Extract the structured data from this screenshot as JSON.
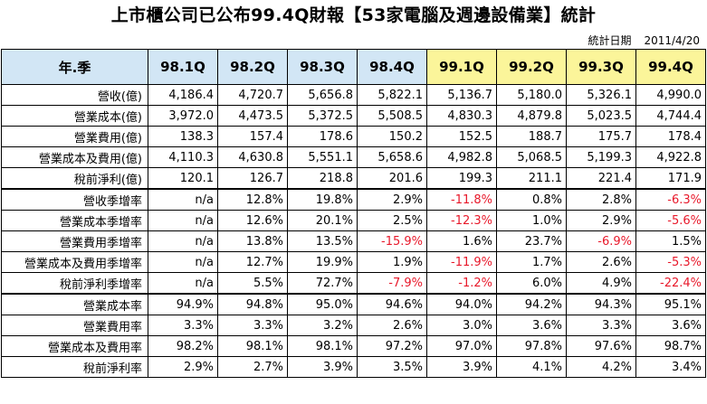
{
  "title": "上市櫃公司已公布99.4Q財報【53家電腦及週邊設備業】統計",
  "stat_date": {
    "label": "統計日期",
    "value": "2011/4/20"
  },
  "header": {
    "row_label": "年.季",
    "quarters": [
      "98.1Q",
      "98.2Q",
      "98.3Q",
      "98.4Q",
      "99.1Q",
      "99.2Q",
      "99.3Q",
      "99.4Q"
    ]
  },
  "colors": {
    "header_2009": "#d2e6f5",
    "header_2010": "#fbf59a",
    "negative": "#e8182a"
  },
  "rows": [
    {
      "label": "營收(億)",
      "values": [
        "4,186.4",
        "4,720.7",
        "5,656.8",
        "5,822.1",
        "5,136.7",
        "5,180.0",
        "5,326.1",
        "4,990.0"
      ]
    },
    {
      "label": "營業成本(億)",
      "values": [
        "3,972.0",
        "4,473.5",
        "5,372.5",
        "5,508.5",
        "4,830.3",
        "4,879.8",
        "5,023.5",
        "4,744.4"
      ]
    },
    {
      "label": "營業費用(億)",
      "values": [
        "138.3",
        "157.4",
        "178.6",
        "150.2",
        "152.5",
        "188.7",
        "175.7",
        "178.4"
      ]
    },
    {
      "label": "營業成本及費用(億)",
      "values": [
        "4,110.3",
        "4,630.8",
        "5,551.1",
        "5,658.6",
        "4,982.8",
        "5,068.5",
        "5,199.3",
        "4,922.8"
      ]
    },
    {
      "label": "稅前淨利(億)",
      "values": [
        "120.1",
        "126.7",
        "218.8",
        "201.6",
        "199.3",
        "211.1",
        "221.4",
        "171.9"
      ]
    },
    {
      "label": "營收季增率",
      "values": [
        "n/a",
        "12.8%",
        "19.8%",
        "2.9%",
        "-11.8%",
        "0.8%",
        "2.8%",
        "-6.3%"
      ]
    },
    {
      "label": "營業成本季增率",
      "values": [
        "n/a",
        "12.6%",
        "20.1%",
        "2.5%",
        "-12.3%",
        "1.0%",
        "2.9%",
        "-5.6%"
      ]
    },
    {
      "label": "營業費用季增率",
      "values": [
        "n/a",
        "13.8%",
        "13.5%",
        "-15.9%",
        "1.6%",
        "23.7%",
        "-6.9%",
        "1.5%"
      ]
    },
    {
      "label": "營業成本及費用季增率",
      "values": [
        "n/a",
        "12.7%",
        "19.9%",
        "1.9%",
        "-11.9%",
        "1.7%",
        "2.6%",
        "-5.3%"
      ]
    },
    {
      "label": "稅前淨利季增率",
      "values": [
        "n/a",
        "5.5%",
        "72.7%",
        "-7.9%",
        "-1.2%",
        "6.0%",
        "4.9%",
        "-22.4%"
      ]
    },
    {
      "label": "營業成本率",
      "values": [
        "94.9%",
        "94.8%",
        "95.0%",
        "94.6%",
        "94.0%",
        "94.2%",
        "94.3%",
        "95.1%"
      ]
    },
    {
      "label": "營業費用率",
      "values": [
        "3.3%",
        "3.3%",
        "3.2%",
        "2.6%",
        "3.0%",
        "3.6%",
        "3.3%",
        "3.6%"
      ]
    },
    {
      "label": "營業成本及費用率",
      "values": [
        "98.2%",
        "98.1%",
        "98.1%",
        "97.2%",
        "97.0%",
        "97.8%",
        "97.6%",
        "98.7%"
      ]
    },
    {
      "label": "稅前淨利率",
      "values": [
        "2.9%",
        "2.7%",
        "3.9%",
        "3.5%",
        "3.9%",
        "4.1%",
        "4.2%",
        "3.4%"
      ]
    }
  ]
}
